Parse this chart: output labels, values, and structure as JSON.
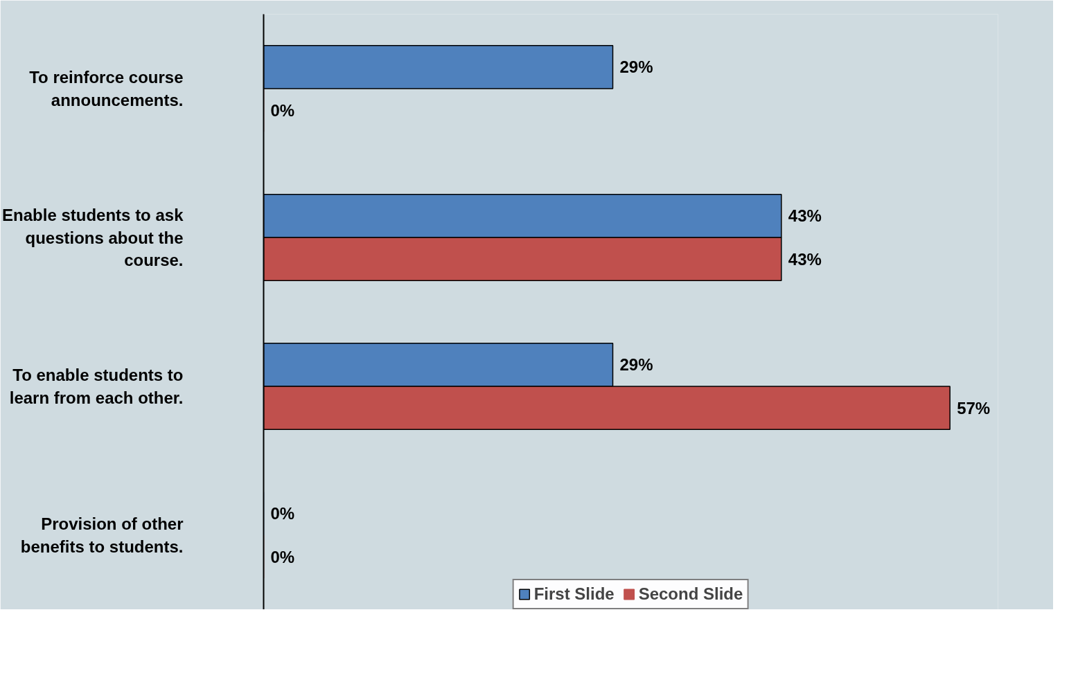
{
  "chart_data": {
    "type": "bar",
    "orientation": "horizontal",
    "categories": [
      "To reinforce course announcements.",
      "Enable students to ask questions about the course.",
      "To enable students to learn from each other.",
      "Provision of other benefits to students."
    ],
    "series": [
      {
        "name": "First Slide",
        "color": "#4f81bd",
        "values": [
          29,
          43,
          29,
          0
        ],
        "value_labels": [
          "29%",
          "43%",
          "29%",
          "0%"
        ]
      },
      {
        "name": "Second Slide",
        "color": "#c0504d",
        "values": [
          0,
          43,
          57,
          0
        ],
        "value_labels": [
          "0%",
          "43%",
          "57%",
          "0%"
        ]
      }
    ],
    "legend": "bottom",
    "grid": false
  }
}
